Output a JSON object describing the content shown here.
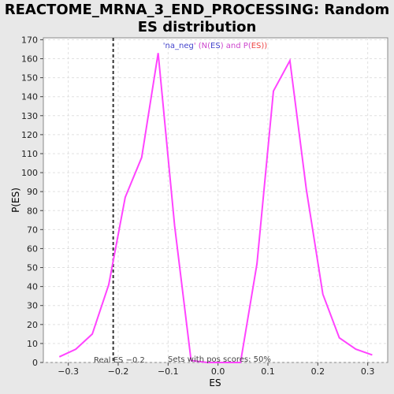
{
  "chart_data": {
    "type": "line",
    "title": "REACTOME_MRNA_3_END_PROCESSING: Random ES distribution",
    "xlabel": "ES",
    "ylabel": "P(ES)",
    "xlim": [
      -0.35,
      0.34
    ],
    "ylim": [
      0,
      171
    ],
    "xticks": [
      -0.3,
      -0.2,
      -0.1,
      0.0,
      0.1,
      0.2,
      0.3
    ],
    "xtick_labels": [
      "−0.3",
      "−0.2",
      "−0.1",
      "0.0",
      "0.1",
      "0.2",
      "0.3"
    ],
    "yticks": [
      0,
      10,
      20,
      30,
      40,
      50,
      60,
      70,
      80,
      90,
      100,
      110,
      120,
      130,
      140,
      150,
      160,
      170
    ],
    "grid": true,
    "series": [
      {
        "name": "P(ES)",
        "color": "#ff44ff",
        "x": [
          -0.318,
          -0.285,
          -0.252,
          -0.219,
          -0.186,
          -0.153,
          -0.12,
          -0.087,
          -0.054,
          -0.021,
          0.012,
          0.045,
          0.078,
          0.111,
          0.144,
          0.177,
          0.21,
          0.243,
          0.276,
          0.309
        ],
        "y": [
          3,
          7,
          15,
          41,
          87,
          108,
          163,
          72,
          1,
          0,
          0,
          0,
          52,
          143,
          159,
          91,
          36,
          13,
          7,
          4
        ]
      }
    ],
    "real_es": {
      "value": -0.21,
      "label": "Real ES −0.2",
      "color": "#333333"
    },
    "legend_text_parts": [
      {
        "text": "'na_neg",
        "color": "#4444cc"
      },
      {
        "text": "' (N(",
        "color": "#cc44cc"
      },
      {
        "text": "ES",
        "color": "#4444cc"
      },
      {
        "text": ") and P(",
        "color": "#cc44cc"
      },
      {
        "text": "ES",
        "color": "#ee4444"
      },
      {
        "text": "))",
        "color": "#ee4444"
      }
    ],
    "annotation": "Sets with pos scores: 50%"
  }
}
